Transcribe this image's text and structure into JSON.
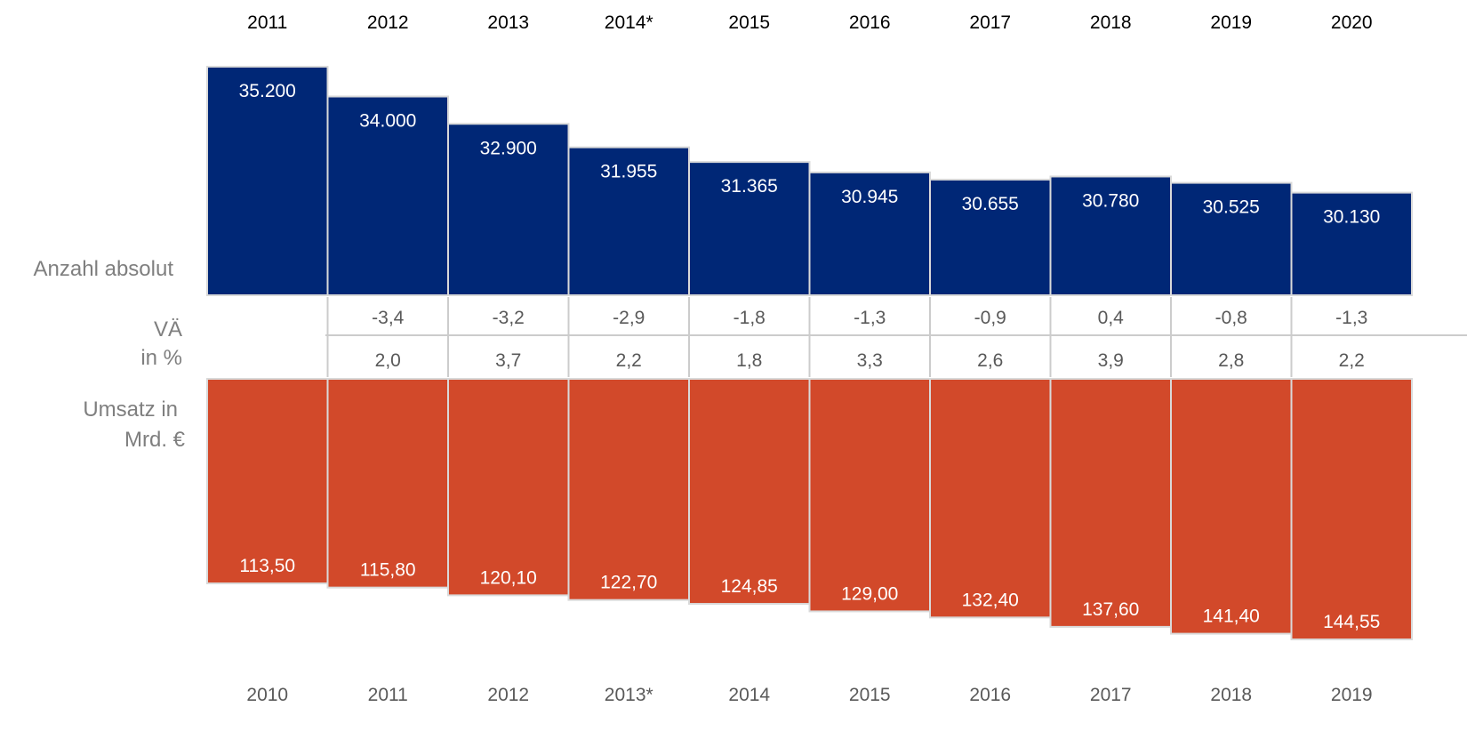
{
  "chart_data": {
    "type": "bar",
    "top_series": {
      "name": "Anzahl absolut",
      "categories": [
        "2011",
        "2012",
        "2013",
        "2014*",
        "2015",
        "2016",
        "2017",
        "2018",
        "2019",
        "2020"
      ],
      "values": [
        35200,
        34000,
        32900,
        31955,
        31365,
        30945,
        30655,
        30780,
        30525,
        30130
      ],
      "value_labels": [
        "35.200",
        "34.000",
        "32.900",
        "31.955",
        "31.365",
        "30.945",
        "30.655",
        "30.780",
        "30.525",
        "30.130"
      ],
      "change_pct": [
        "",
        "-3,4",
        "-3,2",
        "-2,9",
        "-1,8",
        "-1,3",
        "-0,9",
        "0,4",
        "-0,8",
        "-1,3"
      ],
      "color": "#002776"
    },
    "bottom_series": {
      "name": "Umsatz in Mrd. €",
      "categories": [
        "2010",
        "2011",
        "2012",
        "2013*",
        "2014",
        "2015",
        "2016",
        "2017",
        "2018",
        "2019"
      ],
      "values": [
        113.5,
        115.8,
        120.1,
        122.7,
        124.85,
        129.0,
        132.4,
        137.6,
        141.4,
        144.55
      ],
      "value_labels": [
        "113,50",
        "115,80",
        "120,10",
        "122,70",
        "124,85",
        "129,00",
        "132,40",
        "137,60",
        "141,40",
        "144,55"
      ],
      "change_pct": [
        "",
        "2,0",
        "3,7",
        "2,2",
        "1,8",
        "3,3",
        "2,6",
        "3,9",
        "2,8",
        "2,2"
      ],
      "color": "#D2492A"
    },
    "row_labels": {
      "top": "Anzahl absolut",
      "change_line1": "VÄ",
      "change_line2": "in  %",
      "bottom_line1": "Umsatz in",
      "bottom_line2": "Mrd. €"
    }
  }
}
